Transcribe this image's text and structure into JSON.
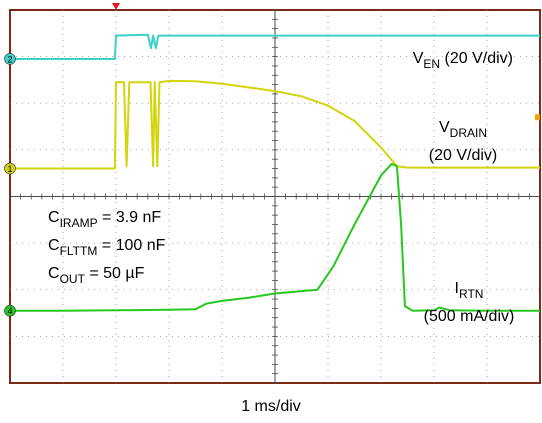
{
  "chart_data": {
    "type": "line",
    "x_axis": {
      "scale_label": "1 ms/div",
      "units": "ms",
      "divisions": 10,
      "xlim": [
        0,
        10
      ],
      "trigger_time_ms": 2.0
    },
    "y_axis": {
      "divisions": 8,
      "grid": true
    },
    "channel_markers": [
      {
        "channel": "2",
        "level_div_from_top": 1.05,
        "color": "#3ad1c8"
      },
      {
        "channel": "1",
        "level_div_from_top": 3.4,
        "color": "#d4d40a"
      },
      {
        "channel": "4",
        "level_div_from_top": 6.45,
        "color": "#27c81e"
      }
    ],
    "annotations": [
      {
        "name": "c_iramp",
        "base": "C",
        "sub": "IRAMP",
        "rest": " = 3.9 nF"
      },
      {
        "name": "c_flttm",
        "base": "C",
        "sub": "FLTTM",
        "rest": " = 100 nF"
      },
      {
        "name": "c_out",
        "base": "C",
        "sub": "OUT",
        "rest": " = 50 µF"
      }
    ],
    "series": [
      {
        "name": "V_EN",
        "label_base": "V",
        "label_sub": "EN",
        "label_rest": " (20 V/div)",
        "scale": "20 V/div",
        "color": "#3ad1c8",
        "points": [
          [
            0,
            1.05
          ],
          [
            1.98,
            1.05
          ],
          [
            2.0,
            0.55
          ],
          [
            2.6,
            0.53
          ],
          [
            2.66,
            0.82
          ],
          [
            2.7,
            0.55
          ],
          [
            2.75,
            0.82
          ],
          [
            2.8,
            0.55
          ],
          [
            10,
            0.55
          ]
        ]
      },
      {
        "name": "V_DRAIN",
        "label_base": "V",
        "label_sub": "DRAIN",
        "label_rest": "",
        "label_line2": "(20 V/div)",
        "scale": "20 V/div",
        "color": "#d4d40a",
        "points": [
          [
            0,
            3.4
          ],
          [
            1.98,
            3.4
          ],
          [
            2.0,
            1.55
          ],
          [
            2.15,
            1.55
          ],
          [
            2.2,
            3.35
          ],
          [
            2.25,
            1.55
          ],
          [
            2.65,
            1.55
          ],
          [
            2.7,
            3.35
          ],
          [
            2.73,
            1.55
          ],
          [
            2.78,
            3.35
          ],
          [
            2.82,
            1.55
          ],
          [
            3.0,
            1.52
          ],
          [
            3.5,
            1.53
          ],
          [
            4.0,
            1.58
          ],
          [
            4.5,
            1.66
          ],
          [
            5.0,
            1.74
          ],
          [
            5.5,
            1.85
          ],
          [
            6.0,
            2.05
          ],
          [
            6.5,
            2.38
          ],
          [
            7.0,
            2.95
          ],
          [
            7.3,
            3.35
          ],
          [
            7.5,
            3.38
          ],
          [
            10,
            3.38
          ]
        ]
      },
      {
        "name": "I_RTN",
        "label_base": "I",
        "label_sub": "RTN",
        "label_rest": "",
        "label_line2": "(500 mA/div)",
        "scale": "500 mA/div",
        "color": "#27c81e",
        "points": [
          [
            0,
            6.45
          ],
          [
            1.0,
            6.45
          ],
          [
            2.0,
            6.44
          ],
          [
            3.0,
            6.43
          ],
          [
            3.5,
            6.42
          ],
          [
            3.7,
            6.3
          ],
          [
            4.0,
            6.24
          ],
          [
            4.5,
            6.17
          ],
          [
            5.0,
            6.08
          ],
          [
            5.5,
            6.03
          ],
          [
            5.8,
            6.0
          ],
          [
            6.1,
            5.5
          ],
          [
            6.5,
            4.6
          ],
          [
            7.0,
            3.55
          ],
          [
            7.2,
            3.3
          ],
          [
            7.3,
            3.35
          ],
          [
            7.38,
            4.6
          ],
          [
            7.45,
            6.35
          ],
          [
            7.6,
            6.45
          ],
          [
            8.0,
            6.44
          ],
          [
            8.1,
            6.38
          ],
          [
            8.3,
            6.44
          ],
          [
            9.0,
            6.45
          ],
          [
            10,
            6.45
          ]
        ]
      }
    ]
  }
}
